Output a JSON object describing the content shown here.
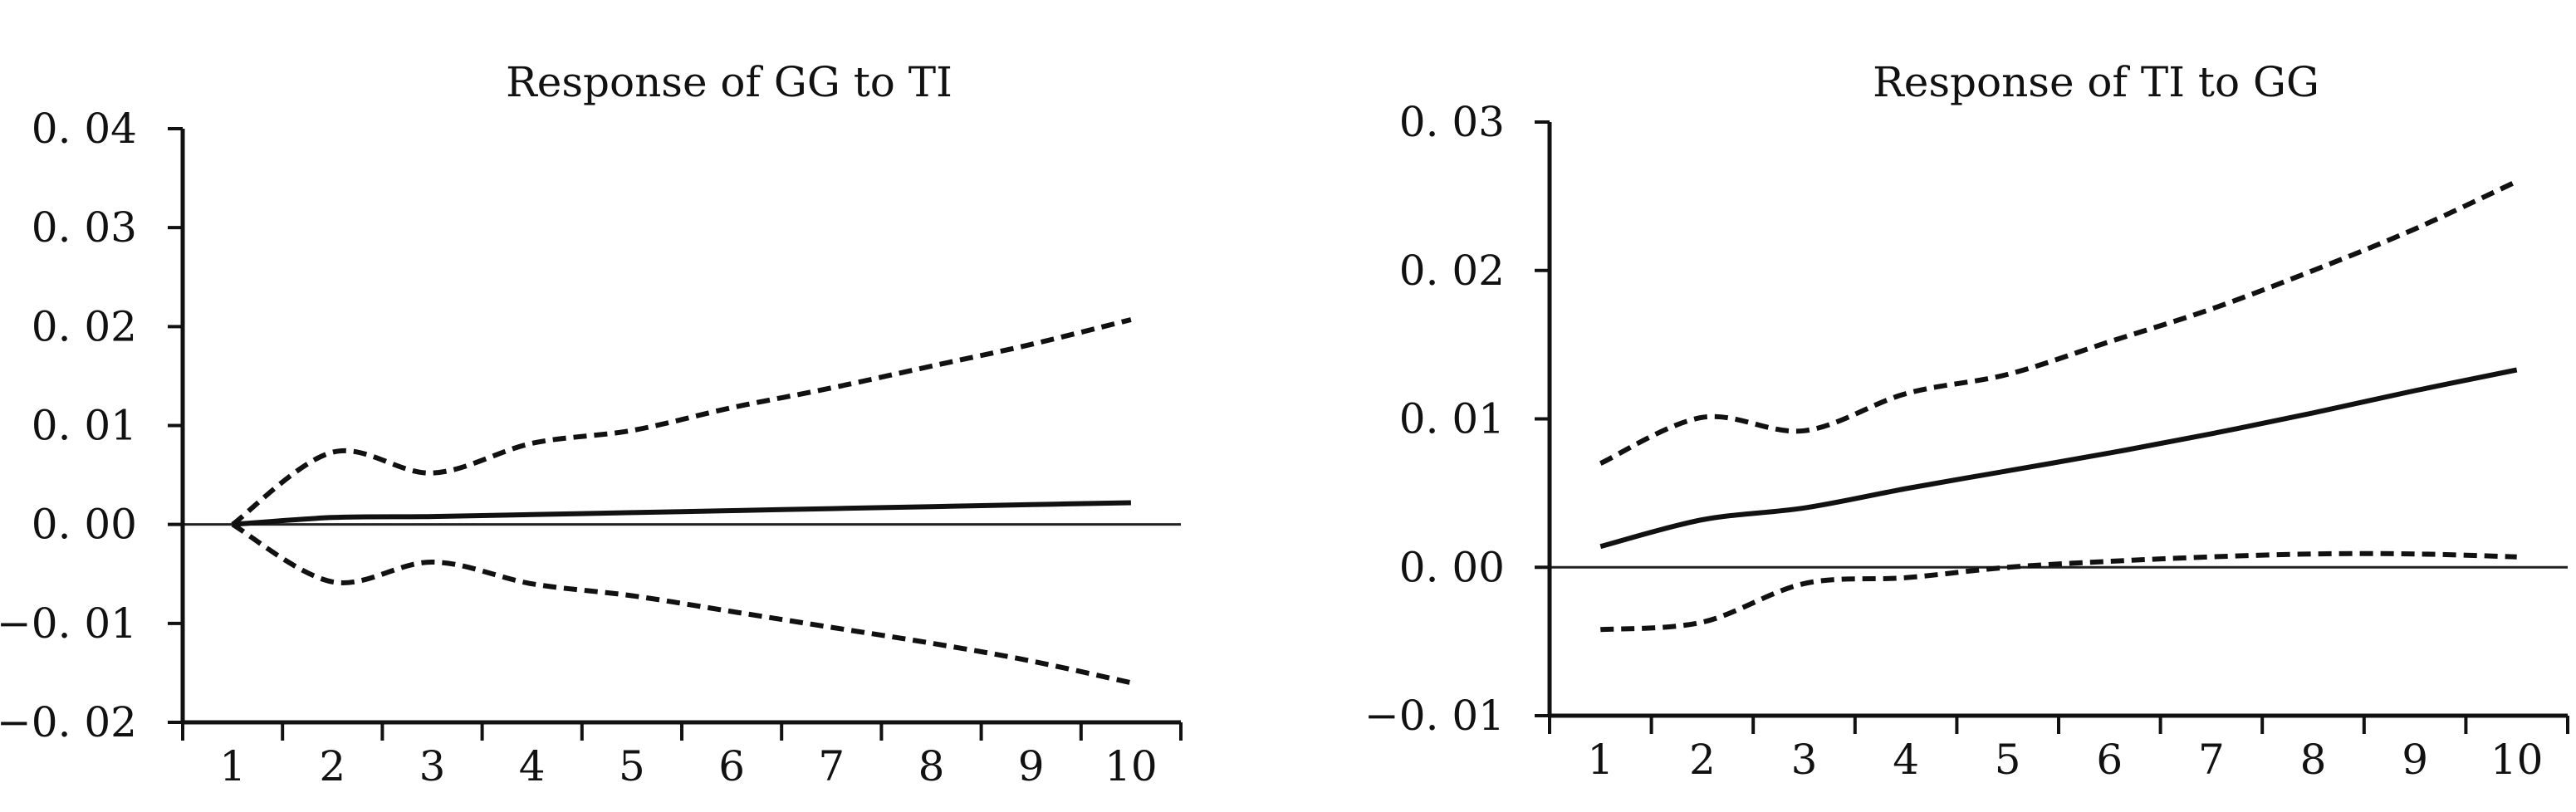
{
  "chart_data": [
    {
      "type": "line",
      "title": "Response of GG to TI",
      "xlabel": "",
      "ylabel": "",
      "x": [
        1,
        2,
        3,
        4,
        5,
        6,
        7,
        8,
        9,
        10
      ],
      "xlim": [
        0.5,
        10.5
      ],
      "ylim": [
        -0.02,
        0.04
      ],
      "y_ticks": [
        0.04,
        0.03,
        0.02,
        0.01,
        0.0,
        -0.01,
        -0.02
      ],
      "y_tick_labels": [
        "0. 04",
        "0. 03",
        "0. 02",
        "0. 01",
        "0. 00",
        "−0. 01",
        "−0. 02"
      ],
      "x_tick_labels": [
        "1",
        "2",
        "3",
        "4",
        "5",
        "6",
        "7",
        "8",
        "9",
        "10"
      ],
      "zero_line": true,
      "grid": false,
      "series": [
        {
          "style": "dashed",
          "values": [
            0.0,
            0.0073,
            0.0052,
            0.0082,
            0.0095,
            0.0118,
            0.0138,
            0.016,
            0.0182,
            0.0207
          ]
        },
        {
          "style": "solid",
          "values": [
            0.0,
            0.0007,
            0.0008,
            0.001,
            0.0012,
            0.0014,
            0.0016,
            0.0018,
            0.002,
            0.0022
          ]
        },
        {
          "style": "dashed",
          "values": [
            0.0,
            -0.0058,
            -0.0038,
            -0.006,
            -0.0072,
            -0.0088,
            -0.0104,
            -0.012,
            -0.0138,
            -0.016
          ]
        }
      ]
    },
    {
      "type": "line",
      "title": "Response of TI to GG",
      "xlabel": "",
      "ylabel": "",
      "x": [
        1,
        2,
        3,
        4,
        5,
        6,
        7,
        8,
        9,
        10
      ],
      "xlim": [
        0.5,
        10.5
      ],
      "ylim": [
        -0.01,
        0.03
      ],
      "y_ticks": [
        0.03,
        0.02,
        0.01,
        0.0,
        -0.01
      ],
      "y_tick_labels": [
        "0. 03",
        "0. 02",
        "0. 01",
        "0. 00",
        "−0. 01"
      ],
      "x_tick_labels": [
        "1",
        "2",
        "3",
        "4",
        "5",
        "6",
        "7",
        "8",
        "9",
        "10"
      ],
      "zero_line": true,
      "grid": false,
      "series": [
        {
          "style": "dashed",
          "values": [
            0.007,
            0.0101,
            0.0092,
            0.0117,
            0.013,
            0.0152,
            0.0174,
            0.02,
            0.0228,
            0.026
          ]
        },
        {
          "style": "solid",
          "values": [
            0.0014,
            0.0032,
            0.004,
            0.0053,
            0.0065,
            0.0077,
            0.009,
            0.0104,
            0.0119,
            0.0133
          ]
        },
        {
          "style": "dashed",
          "values": [
            -0.0042,
            -0.0037,
            -0.0011,
            -0.0007,
            0.0,
            0.0004,
            0.0007,
            0.0009,
            0.0009,
            0.0007
          ]
        }
      ]
    }
  ]
}
